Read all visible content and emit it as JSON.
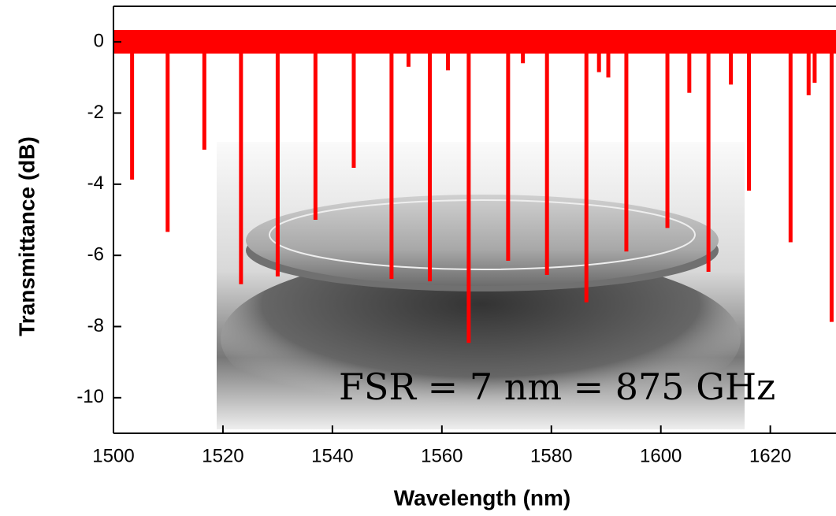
{
  "chart_data": {
    "type": "stem",
    "xlabel": "Wavelength (nm)",
    "ylabel": "Transmittance (dB)",
    "annotation": "FSR = 7 nm = 875 GHz",
    "color": "#ff0000",
    "x": [
      1503.4,
      1509.9,
      1516.6,
      1523.3,
      1530.0,
      1536.9,
      1543.9,
      1550.8,
      1553.9,
      1557.8,
      1561.1,
      1564.9,
      1572.1,
      1574.8,
      1579.2,
      1586.4,
      1588.7,
      1590.4,
      1593.7,
      1601.2,
      1605.2,
      1608.7,
      1612.8,
      1616.1,
      1623.7,
      1627.0,
      1628.1,
      1631.2
    ],
    "values": [
      -3.87,
      -5.34,
      -3.03,
      -6.81,
      -6.59,
      -5.0,
      -3.54,
      -6.66,
      -0.7,
      -6.73,
      -0.8,
      -8.46,
      -6.15,
      -0.6,
      -6.55,
      -7.32,
      -0.85,
      -1.0,
      -5.89,
      -5.23,
      -1.43,
      -6.46,
      -1.2,
      -4.18,
      -5.63,
      -1.5,
      -1.15,
      -7.87
    ],
    "xlim": [
      1500,
      1632
    ],
    "ylim": [
      -11,
      1
    ],
    "xticks": [
      1500,
      1520,
      1540,
      1560,
      1580,
      1600,
      1620
    ],
    "yticks": [
      0,
      -2,
      -4,
      -6,
      -8,
      -10
    ]
  }
}
